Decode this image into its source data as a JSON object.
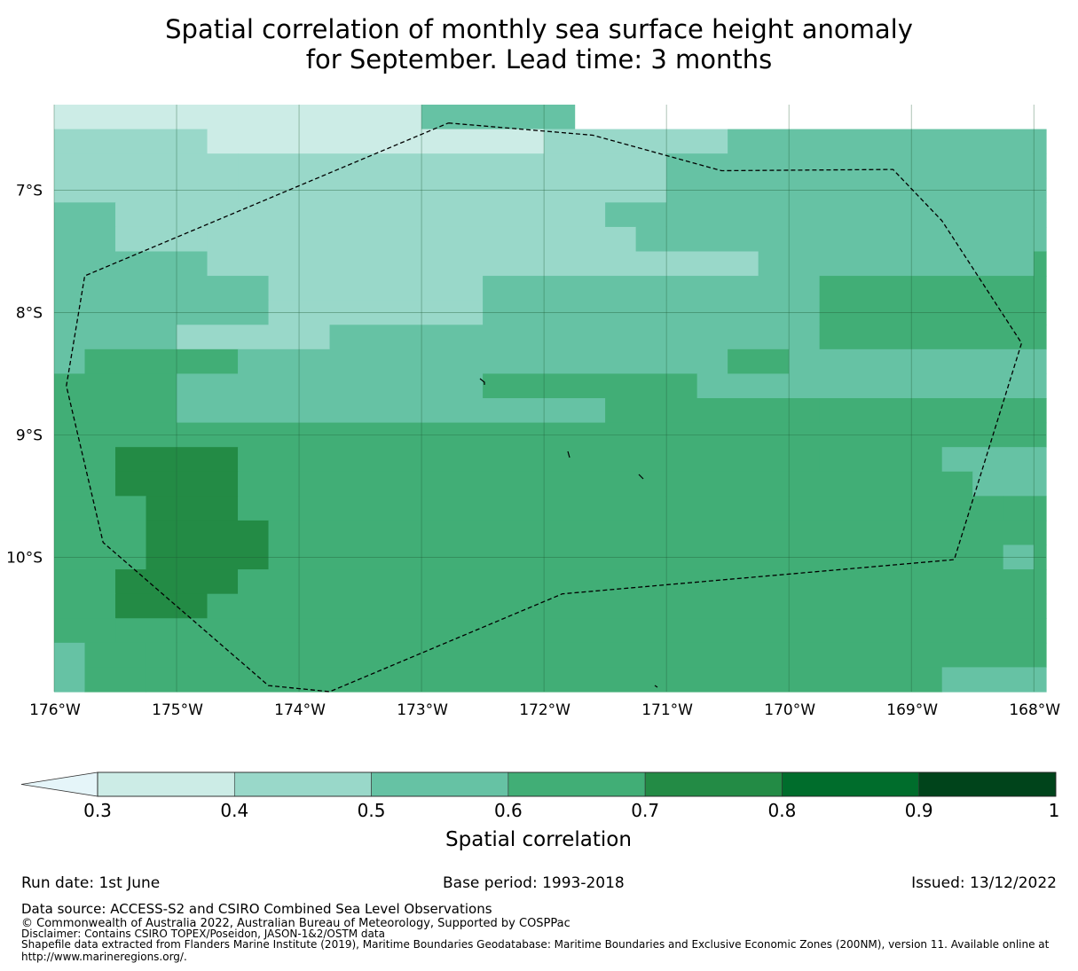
{
  "title": {
    "line1": "Spatial correlation of monthly sea surface height anomaly",
    "line2": "for September. Lead time: 3 months"
  },
  "chart_data": {
    "type": "heatmap",
    "variable": "Spatial correlation",
    "lon_range": [
      -176,
      -167.9
    ],
    "lat_range": [
      -11.1,
      -6.3
    ],
    "lon_ticks": [
      "176°W",
      "175°W",
      "174°W",
      "173°W",
      "172°W",
      "171°W",
      "170°W",
      "169°W",
      "168°W"
    ],
    "lat_ticks": [
      "7°S",
      "8°S",
      "9°S",
      "10°S"
    ],
    "grid": true,
    "cell_deg": 0.25,
    "row_runs_from_north": [
      [
        [
          12,
          1
        ],
        [
          5,
          3
        ]
      ],
      [
        [
          5,
          2
        ],
        [
          11,
          1
        ],
        [
          6,
          2
        ],
        [
          1,
          3
        ],
        [
          10,
          3
        ]
      ],
      [
        [
          6,
          2
        ],
        [
          14,
          2
        ],
        [
          15,
          3
        ]
      ],
      [
        [
          6,
          2
        ],
        [
          14,
          2
        ],
        [
          15,
          3
        ]
      ],
      [
        [
          2,
          3
        ],
        [
          16,
          2
        ],
        [
          17,
          3
        ]
      ],
      [
        [
          2,
          3
        ],
        [
          3,
          2
        ],
        [
          14,
          2
        ],
        [
          15,
          3
        ]
      ],
      [
        [
          5,
          3
        ],
        [
          3,
          2
        ],
        [
          15,
          2
        ],
        [
          9,
          3
        ],
        [
          3,
          4
        ]
      ],
      [
        [
          7,
          3
        ],
        [
          7,
          2
        ],
        [
          11,
          3
        ],
        [
          10,
          4
        ]
      ],
      [
        [
          7,
          3
        ],
        [
          7,
          2
        ],
        [
          11,
          3
        ],
        [
          10,
          4
        ]
      ],
      [
        [
          4,
          3
        ],
        [
          5,
          2
        ],
        [
          16,
          3
        ],
        [
          8,
          4
        ]
      ],
      [
        [
          1,
          3
        ],
        [
          5,
          4
        ],
        [
          16,
          3
        ],
        [
          2,
          4
        ],
        [
          11,
          3
        ],
        [
          7,
          4
        ]
      ],
      [
        [
          4,
          4
        ],
        [
          10,
          3
        ],
        [
          7,
          4
        ],
        [
          14,
          3
        ],
        [
          7,
          4
        ]
      ],
      [
        [
          4,
          4
        ],
        [
          14,
          3
        ],
        [
          7,
          4
        ],
        [
          10,
          4
        ],
        [
          7,
          4
        ]
      ],
      [
        [
          4,
          4
        ],
        [
          29,
          4
        ],
        [
          1,
          3
        ],
        [
          2,
          4
        ]
      ],
      [
        [
          2,
          4
        ],
        [
          4,
          5
        ],
        [
          19,
          4
        ],
        [
          4,
          4
        ],
        [
          4,
          3
        ],
        [
          1,
          4
        ]
      ],
      [
        [
          2,
          4
        ],
        [
          4,
          5
        ],
        [
          18,
          4
        ],
        [
          6,
          4
        ],
        [
          4,
          3
        ],
        [
          1,
          3
        ]
      ],
      [
        [
          3,
          4
        ],
        [
          3,
          5
        ],
        [
          25,
          4
        ],
        [
          2,
          4
        ],
        [
          1,
          3
        ],
        [
          2,
          3
        ]
      ],
      [
        [
          3,
          4
        ],
        [
          4,
          5
        ],
        [
          26,
          4
        ],
        [
          1,
          3
        ],
        [
          2,
          3
        ]
      ],
      [
        [
          3,
          4
        ],
        [
          4,
          5
        ],
        [
          24,
          4
        ],
        [
          1,
          3
        ],
        [
          2,
          4
        ]
      ],
      [
        [
          2,
          4
        ],
        [
          4,
          5
        ],
        [
          26,
          4
        ],
        [
          1,
          4
        ]
      ],
      [
        [
          2,
          4
        ],
        [
          3,
          5
        ],
        [
          27,
          4
        ],
        [
          1,
          4
        ]
      ],
      [
        [
          2,
          4
        ],
        [
          4,
          4
        ],
        [
          26,
          4
        ],
        [
          1,
          4
        ]
      ],
      [
        [
          1,
          3
        ],
        [
          2,
          4
        ],
        [
          30,
          4
        ],
        [
          1,
          3
        ]
      ],
      [
        [
          1,
          3
        ],
        [
          2,
          4
        ],
        [
          1,
          4
        ],
        [
          25,
          4
        ],
        [
          3,
          3
        ],
        [
          1,
          3
        ]
      ]
    ],
    "eez_boundary_lonlat": [
      [
        -172.78,
        -6.45
      ],
      [
        -171.6,
        -6.55
      ],
      [
        -170.55,
        -6.84
      ],
      [
        -169.15,
        -6.83
      ],
      [
        -168.75,
        -7.25
      ],
      [
        -168.1,
        -8.25
      ],
      [
        -168.65,
        -10.02
      ],
      [
        -171.85,
        -10.3
      ],
      [
        -173.75,
        -11.1
      ],
      [
        -174.25,
        -11.05
      ],
      [
        -175.6,
        -9.88
      ],
      [
        -175.9,
        -8.6
      ],
      [
        -175.75,
        -7.7
      ],
      [
        -172.78,
        -6.45
      ]
    ],
    "colorbar": {
      "boundaries": [
        0.3,
        0.4,
        0.5,
        0.6,
        0.7,
        0.8,
        0.9,
        1
      ],
      "tick_labels": [
        "0.3",
        "0.4",
        "0.5",
        "0.6",
        "0.7",
        "0.8",
        "0.9",
        "1"
      ],
      "colors": [
        "#e5f5f9",
        "#ccece6",
        "#99d8c9",
        "#66c2a4",
        "#41ae76",
        "#238b45",
        "#006d2c",
        "#00441b"
      ],
      "extend": "min",
      "label": "Spatial correlation"
    }
  },
  "footer": {
    "run_date": "Run date: 1st June",
    "base_period": "Base period: 1993-2018",
    "issued": "Issued: 13/12/2022",
    "data_source": "Data source: ACCESS-S2 and CSIRO Combined Sea Level Observations",
    "copyright": "© Commonwealth of Australia 2022, Australian Bureau of Meteorology, Supported by COSPPac",
    "disclaimer": "Disclaimer: Contains CSIRO TOPEX/Poseidon, JASON-1&2/OSTM data",
    "shapefile_line1": "Shapefile data extracted from Flanders Marine Institute (2019), Maritime Boundaries Geodatabase: Maritime Boundaries and Exclusive Economic Zones (200NM), version 11. Available online at",
    "shapefile_line2": "http://www.marineregions.org/."
  }
}
